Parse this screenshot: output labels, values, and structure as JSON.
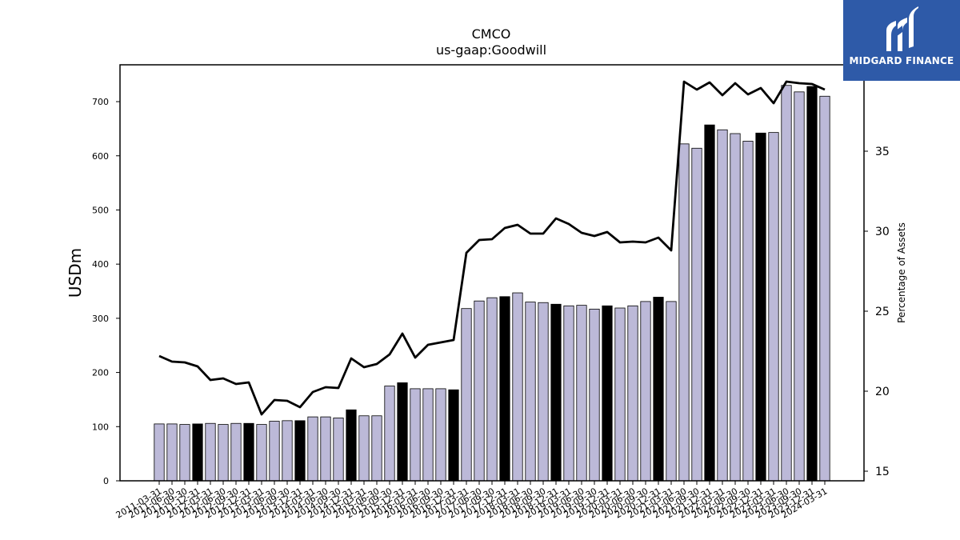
{
  "chart_data": {
    "type": "bar",
    "title": "CMCO",
    "subtitle": "us-gaap:Goodwill",
    "ylabel": "USDm",
    "y2label": "Percentage of Assets",
    "ylim": [
      0,
      768
    ],
    "y2lim": [
      14.4,
      40.4
    ],
    "yticks": [
      0,
      100,
      200,
      300,
      400,
      500,
      600,
      700
    ],
    "y2ticks": [
      15,
      20,
      25,
      30,
      35
    ],
    "categories": [
      "2011-03-31",
      "2011-06-30",
      "2011-09-30",
      "2011-12-31",
      "2012-03-31",
      "2012-06-30",
      "2012-09-30",
      "2012-12-31",
      "2013-03-31",
      "2013-06-30",
      "2013-09-30",
      "2013-12-31",
      "2014-03-31",
      "2014-06-30",
      "2014-09-30",
      "2014-12-31",
      "2015-03-31",
      "2015-06-30",
      "2015-09-30",
      "2015-12-31",
      "2016-03-31",
      "2016-06-30",
      "2016-09-30",
      "2016-12-31",
      "2017-03-31",
      "2017-06-30",
      "2017-09-30",
      "2017-12-31",
      "2018-03-31",
      "2018-06-30",
      "2018-09-30",
      "2018-12-31",
      "2019-03-31",
      "2019-06-30",
      "2019-09-30",
      "2019-12-31",
      "2020-03-31",
      "2020-06-30",
      "2020-09-30",
      "2020-12-31",
      "2021-03-31",
      "2021-06-30",
      "2021-09-30",
      "2021-12-31",
      "2022-03-31",
      "2022-06-30",
      "2022-09-30",
      "2022-12-31",
      "2023-03-31",
      "2023-06-30",
      "2023-09-30",
      "2023-12-31",
      "2024-03-31"
    ],
    "series": [
      {
        "kind": "bar",
        "axis": "left",
        "values": [
          105,
          105,
          104,
          105,
          106,
          104,
          106,
          106,
          104,
          110,
          111,
          111,
          118,
          118,
          116,
          131,
          120,
          120,
          175,
          181,
          170,
          170,
          170,
          168,
          318,
          332,
          338,
          340,
          347,
          330,
          329,
          326,
          323,
          324,
          317,
          323,
          319,
          323,
          331,
          339,
          331,
          622,
          614,
          657,
          648,
          641,
          627,
          642,
          643,
          730,
          718,
          728,
          710
        ],
        "highlight": [
          false,
          false,
          false,
          true,
          false,
          false,
          false,
          true,
          false,
          false,
          false,
          true,
          false,
          false,
          false,
          true,
          false,
          false,
          false,
          true,
          false,
          false,
          false,
          true,
          false,
          false,
          false,
          true,
          false,
          false,
          false,
          true,
          false,
          false,
          false,
          true,
          false,
          false,
          false,
          true,
          false,
          false,
          false,
          true,
          false,
          false,
          false,
          true,
          false,
          false,
          false,
          true,
          false
        ]
      },
      {
        "kind": "line",
        "axis": "right",
        "values": [
          22.2,
          21.85,
          21.8,
          21.55,
          20.7,
          20.8,
          20.45,
          20.55,
          18.55,
          19.45,
          19.4,
          19.0,
          19.95,
          20.25,
          20.2,
          22.05,
          21.5,
          21.7,
          22.3,
          23.6,
          22.1,
          22.9,
          23.05,
          23.2,
          28.65,
          29.45,
          29.5,
          30.2,
          30.4,
          29.85,
          29.85,
          30.8,
          30.45,
          29.9,
          29.7,
          29.95,
          29.3,
          29.35,
          29.3,
          29.6,
          28.8,
          39.35,
          38.85,
          39.3,
          38.5,
          39.25,
          38.55,
          38.95,
          38.0,
          39.35,
          39.25,
          39.2,
          38.85
        ]
      }
    ],
    "colors": {
      "bar": "#bcb9d8",
      "bar_highlight": "#000000",
      "line": "#000000"
    },
    "grid": false,
    "legend": "none"
  },
  "logo": {
    "text": "MIDGARD FINANCE",
    "background": "#2e5aa8"
  }
}
